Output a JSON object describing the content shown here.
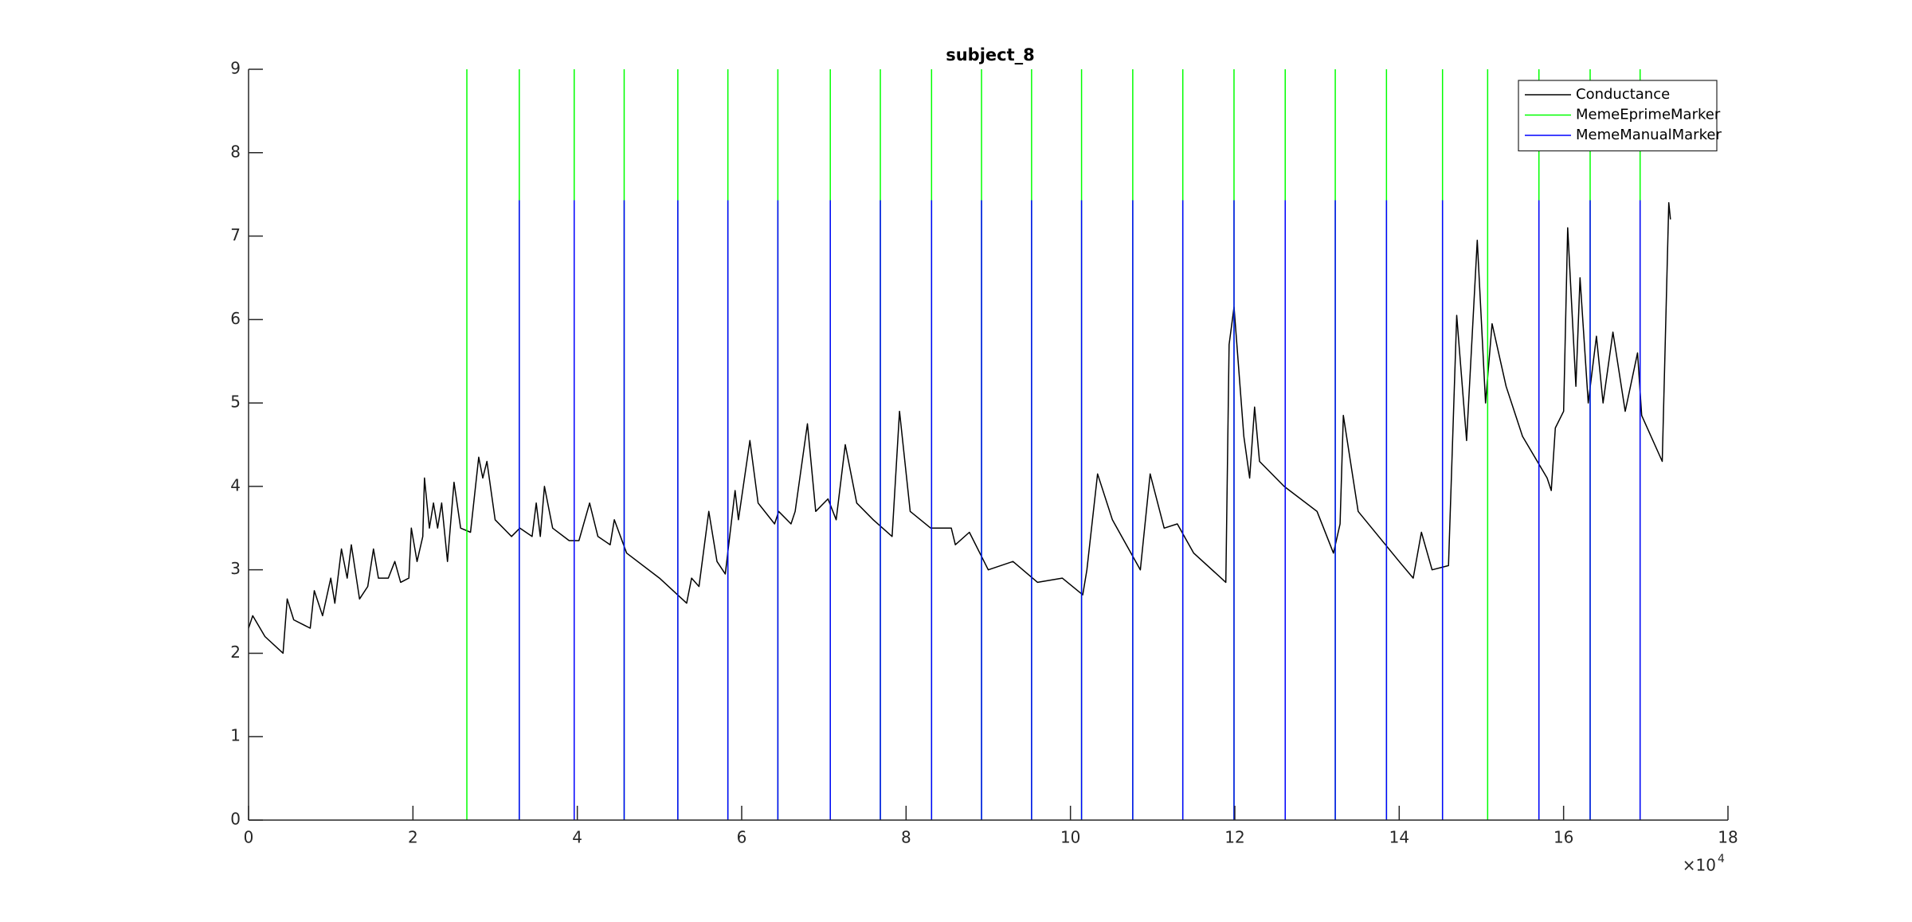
{
  "chart_data": {
    "type": "line",
    "title": "subject_8",
    "xlim": [
      0,
      18
    ],
    "xticks": [
      0,
      2,
      4,
      6,
      8,
      10,
      12,
      14,
      16,
      18
    ],
    "ylim": [
      0,
      9
    ],
    "yticks": [
      0,
      1,
      2,
      3,
      4,
      5,
      6,
      7,
      8,
      9
    ],
    "x_exponent": {
      "base": "×10",
      "power": "4"
    },
    "legend": "top-right",
    "series": [
      {
        "name": "Conductance",
        "color": "#000000",
        "style": "line",
        "x": [
          0,
          0.05,
          0.2,
          0.42,
          0.47,
          0.55,
          0.75,
          0.8,
          0.9,
          1.0,
          1.05,
          1.13,
          1.2,
          1.25,
          1.35,
          1.45,
          1.52,
          1.58,
          1.7,
          1.78,
          1.85,
          1.95,
          1.98,
          2.05,
          2.12,
          2.14,
          2.2,
          2.25,
          2.3,
          2.35,
          2.42,
          2.5,
          2.58,
          2.7,
          2.8,
          2.85,
          2.9,
          3.0,
          3.2,
          3.3,
          3.45,
          3.5,
          3.55,
          3.6,
          3.7,
          3.9,
          4.02,
          4.15,
          4.25,
          4.4,
          4.45,
          4.6,
          5.0,
          5.33,
          5.39,
          5.48,
          5.6,
          5.7,
          5.8,
          5.92,
          5.96,
          6.1,
          6.2,
          6.4,
          6.45,
          6.6,
          6.65,
          6.8,
          6.9,
          7.05,
          7.15,
          7.26,
          7.4,
          7.6,
          7.83,
          7.92,
          8.05,
          8.3,
          8.55,
          8.6,
          8.77,
          9.0,
          9.3,
          9.6,
          9.9,
          10.15,
          10.2,
          10.33,
          10.51,
          10.85,
          10.97,
          11.14,
          11.3,
          11.5,
          11.89,
          11.93,
          11.99,
          12.11,
          12.18,
          12.24,
          12.3,
          12.6,
          13.0,
          13.2,
          13.28,
          13.32,
          13.5,
          14.0,
          14.17,
          14.27,
          14.4,
          14.6,
          14.7,
          14.82,
          14.95,
          15.05,
          15.13,
          15.3,
          15.5,
          15.8,
          15.85,
          15.9,
          16.0,
          16.05,
          16.15,
          16.2,
          16.3,
          16.4,
          16.48,
          16.6,
          16.75,
          16.9,
          16.95,
          17.2,
          17.28,
          17.3
        ],
        "values": [
          2.3,
          2.45,
          2.2,
          2.0,
          2.65,
          2.4,
          2.3,
          2.75,
          2.45,
          2.9,
          2.6,
          3.25,
          2.9,
          3.3,
          2.65,
          2.8,
          3.25,
          2.9,
          2.9,
          3.1,
          2.85,
          2.9,
          3.5,
          3.1,
          3.4,
          4.1,
          3.5,
          3.8,
          3.5,
          3.8,
          3.1,
          4.05,
          3.5,
          3.45,
          4.35,
          4.1,
          4.3,
          3.6,
          3.4,
          3.5,
          3.4,
          3.8,
          3.4,
          4.0,
          3.5,
          3.35,
          3.35,
          3.8,
          3.4,
          3.3,
          3.6,
          3.2,
          2.9,
          2.6,
          2.9,
          2.8,
          3.7,
          3.1,
          2.95,
          3.95,
          3.6,
          4.55,
          3.8,
          3.55,
          3.7,
          3.55,
          3.7,
          4.75,
          3.7,
          3.85,
          3.6,
          4.5,
          3.8,
          3.6,
          3.4,
          4.9,
          3.7,
          3.5,
          3.5,
          3.3,
          3.45,
          3.0,
          3.1,
          2.85,
          2.9,
          2.7,
          3.0,
          4.15,
          3.6,
          3.0,
          4.15,
          3.5,
          3.55,
          3.2,
          2.85,
          5.7,
          6.15,
          4.6,
          4.1,
          4.95,
          4.3,
          4.0,
          3.7,
          3.2,
          3.55,
          4.85,
          3.7,
          3.1,
          2.9,
          3.45,
          3.0,
          3.05,
          6.05,
          4.55,
          6.95,
          5.0,
          5.95,
          5.2,
          4.6,
          4.1,
          3.95,
          4.7,
          4.9,
          7.1,
          5.2,
          6.5,
          5.0,
          5.8,
          5.0,
          5.85,
          4.9,
          5.6,
          4.85,
          4.3,
          7.4,
          7.2
        ]
      },
      {
        "name": "MemeEprimeMarker",
        "color": "#00ff00",
        "style": "spikes",
        "x": [
          2.656,
          3.294,
          3.962,
          4.57,
          5.223,
          5.832,
          6.44,
          7.078,
          7.687,
          8.31,
          8.918,
          9.527,
          10.135,
          10.758,
          11.367,
          11.99,
          12.613,
          13.222,
          13.845,
          14.527,
          15.076,
          15.7,
          16.323,
          16.931
        ],
        "values": [
          9,
          9,
          9,
          9,
          9,
          9,
          9,
          9,
          9,
          9,
          9,
          9,
          9,
          9,
          9,
          9,
          9,
          9,
          9,
          9,
          9,
          9,
          9,
          9
        ]
      },
      {
        "name": "MemeManualMarker",
        "color": "#0000ff",
        "style": "spikes",
        "x": [
          3.294,
          3.962,
          4.57,
          5.223,
          5.832,
          6.44,
          7.078,
          7.687,
          8.31,
          8.918,
          9.527,
          10.135,
          10.758,
          11.367,
          11.99,
          12.613,
          13.222,
          13.845,
          14.527,
          15.7,
          16.323,
          16.931
        ],
        "values": [
          7.43,
          7.43,
          7.43,
          7.43,
          7.43,
          7.43,
          7.43,
          7.43,
          7.43,
          7.43,
          7.43,
          7.43,
          7.43,
          7.43,
          7.43,
          7.43,
          7.43,
          7.43,
          7.43,
          7.43,
          7.43,
          7.43
        ]
      }
    ]
  }
}
